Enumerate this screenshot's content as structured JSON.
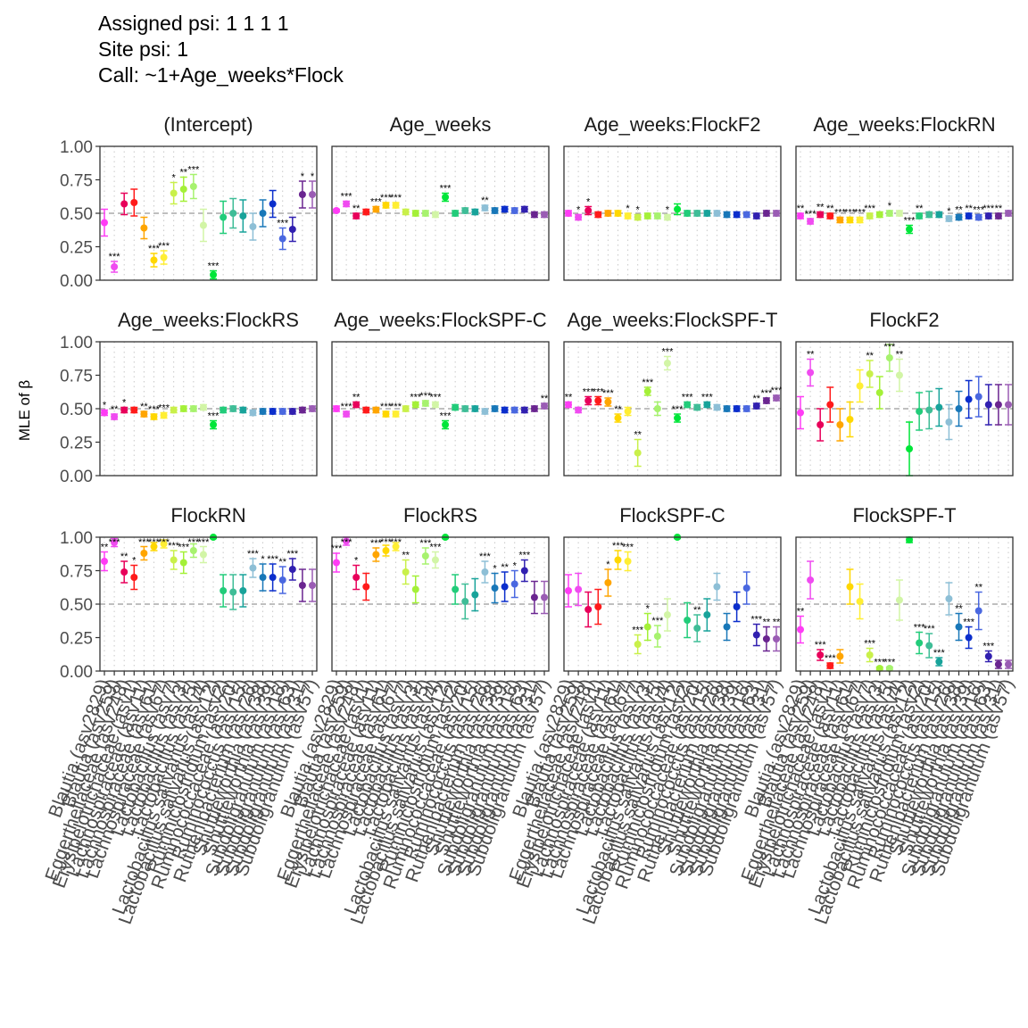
{
  "header": {
    "line1": "Assigned psi: 1 1 1 1",
    "line2": "Site psi: 1",
    "line3": "Call: ~1+Age_weeks*Flock"
  },
  "chart_data": {
    "type": "scatter",
    "ylabel": "MLE of β",
    "ylim": [
      0,
      1
    ],
    "yticks": [
      "0.00",
      "0.25",
      "0.50",
      "0.75",
      "1.00"
    ],
    "reference_line": 0.5,
    "categories": [
      "Blautia (asv2829)",
      "Blautia (asv259)",
      "Eggerthellaceae (asv248)",
      "Erysipelotrichaceae (asv1)",
      "Lachnospiraceae (asv11)",
      "Lachnospiraceae (asv61)",
      "Lachnospiraceae (asv67)",
      "Lactobacillus (asv7)",
      "Lactobacillus (asv3)",
      "Lactobacillus (asv5)",
      "Lactobacillus salivarius (asv4)",
      "Lactobacillus salivarius (asv12)",
      "Ruminiclostridium (asv2)",
      "Ruminococcaceae (asv20)",
      "Ruminococcus (asv15)",
      "Ruthenibacterium (asv26)",
      "Shuttleworthia (asv38)",
      "Shuttleworthia (asv39)",
      "Subdoligranulum (asv16)",
      "Subdoligranulum (asv63)",
      "Subdoligranulum (asv31)",
      "Subdoligranulum (asv57)"
    ],
    "colors": [
      "#ff3cf5",
      "#f04bf0",
      "#e8005a",
      "#ff1a1a",
      "#ffa500",
      "#ffd700",
      "#ffee33",
      "#c9f04a",
      "#a4f038",
      "#a7f26e",
      "#d2f5a6",
      "#00e639",
      "#22cc7a",
      "#3fbd97",
      "#18a39a",
      "#8dbfd6",
      "#1877b8",
      "#0b2ecc",
      "#4a68e0",
      "#3120b0",
      "#6a2590",
      "#9a5cb4"
    ],
    "panels": [
      {
        "name": "(Intercept)",
        "mle": [
          0.43,
          0.1,
          0.57,
          0.58,
          0.39,
          0.15,
          0.17,
          0.65,
          0.68,
          0.7,
          0.41,
          0.04,
          0.47,
          0.5,
          0.48,
          0.4,
          0.5,
          0.57,
          0.31,
          0.38,
          0.64,
          0.64
        ],
        "err": [
          0.1,
          0.04,
          0.08,
          0.1,
          0.08,
          0.05,
          0.05,
          0.08,
          0.09,
          0.09,
          0.12,
          0.03,
          0.12,
          0.11,
          0.12,
          0.1,
          0.1,
          0.1,
          0.08,
          0.09,
          0.1,
          0.1
        ],
        "stars": [
          "",
          "***",
          "",
          "",
          "",
          "***",
          "***",
          "*",
          "**",
          "***",
          "",
          "***",
          "",
          "",
          "",
          "",
          "",
          "",
          "***",
          "",
          "*",
          "*"
        ]
      },
      {
        "name": "Age_weeks",
        "mle": [
          0.52,
          0.57,
          0.48,
          0.51,
          0.53,
          0.56,
          0.56,
          0.51,
          0.5,
          0.5,
          0.49,
          0.62,
          0.5,
          0.52,
          0.51,
          0.54,
          0.52,
          0.53,
          0.52,
          0.53,
          0.49,
          0.49
        ],
        "err": [
          0.01,
          0.02,
          0.02,
          0.02,
          0.02,
          0.02,
          0.02,
          0.02,
          0.02,
          0.02,
          0.02,
          0.03,
          0.02,
          0.02,
          0.02,
          0.02,
          0.02,
          0.02,
          0.02,
          0.02,
          0.02,
          0.02
        ],
        "stars": [
          "",
          "***",
          "**",
          "",
          "***",
          "***",
          "***",
          "",
          "",
          "",
          "",
          "***",
          "",
          "",
          "",
          "**",
          "",
          "",
          "",
          "",
          "",
          ""
        ]
      },
      {
        "name": "Age_weeks:FlockF2",
        "mle": [
          0.5,
          0.47,
          0.52,
          0.49,
          0.5,
          0.5,
          0.48,
          0.47,
          0.48,
          0.48,
          0.47,
          0.53,
          0.5,
          0.5,
          0.5,
          0.5,
          0.49,
          0.49,
          0.49,
          0.48,
          0.5,
          0.5
        ],
        "err": [
          0.02,
          0.02,
          0.03,
          0.02,
          0.02,
          0.02,
          0.02,
          0.02,
          0.02,
          0.02,
          0.02,
          0.04,
          0.02,
          0.02,
          0.02,
          0.02,
          0.02,
          0.02,
          0.02,
          0.02,
          0.02,
          0.02
        ],
        "stars": [
          "",
          "*",
          "*",
          "",
          "",
          "",
          "*",
          "*",
          "",
          "",
          "*",
          "",
          "",
          "",
          "",
          "",
          "",
          "",
          "",
          "",
          "",
          ""
        ]
      },
      {
        "name": "Age_weeks:FlockRN",
        "mle": [
          0.48,
          0.44,
          0.49,
          0.48,
          0.45,
          0.45,
          0.45,
          0.48,
          0.49,
          0.5,
          0.5,
          0.38,
          0.48,
          0.49,
          0.49,
          0.46,
          0.47,
          0.48,
          0.47,
          0.48,
          0.48,
          0.5
        ],
        "err": [
          0.02,
          0.02,
          0.02,
          0.02,
          0.02,
          0.02,
          0.02,
          0.02,
          0.02,
          0.02,
          0.02,
          0.03,
          0.02,
          0.02,
          0.02,
          0.02,
          0.02,
          0.02,
          0.02,
          0.02,
          0.02,
          0.02
        ],
        "stars": [
          "**",
          "***",
          "**",
          "**",
          "***",
          "***",
          "***",
          "***",
          "",
          "*",
          "",
          "***",
          "**",
          "",
          "",
          "*",
          "**",
          "**",
          "***",
          "***",
          "**",
          ""
        ]
      },
      {
        "name": "Age_weeks:FlockRS",
        "mle": [
          0.47,
          0.44,
          0.49,
          0.49,
          0.46,
          0.44,
          0.45,
          0.49,
          0.5,
          0.5,
          0.51,
          0.38,
          0.49,
          0.5,
          0.49,
          0.47,
          0.48,
          0.48,
          0.48,
          0.48,
          0.49,
          0.5
        ],
        "err": [
          0.02,
          0.02,
          0.02,
          0.02,
          0.02,
          0.02,
          0.02,
          0.02,
          0.02,
          0.02,
          0.02,
          0.03,
          0.02,
          0.02,
          0.02,
          0.02,
          0.02,
          0.02,
          0.02,
          0.02,
          0.02,
          0.02
        ],
        "stars": [
          "*",
          "**",
          "*",
          "",
          "**",
          "***",
          "***",
          "",
          "",
          "",
          "",
          "***",
          "",
          "",
          "",
          "",
          "",
          "",
          "",
          "",
          "",
          ""
        ]
      },
      {
        "name": "Age_weeks:FlockSPF-C",
        "mle": [
          0.5,
          0.46,
          0.53,
          0.49,
          0.49,
          0.46,
          0.46,
          0.5,
          0.53,
          0.54,
          0.53,
          0.38,
          0.51,
          0.5,
          0.5,
          0.48,
          0.5,
          0.49,
          0.49,
          0.49,
          0.5,
          0.52
        ],
        "err": [
          0.02,
          0.02,
          0.02,
          0.02,
          0.02,
          0.02,
          0.02,
          0.02,
          0.02,
          0.02,
          0.02,
          0.03,
          0.02,
          0.02,
          0.02,
          0.02,
          0.02,
          0.02,
          0.02,
          0.02,
          0.02,
          0.02
        ],
        "stars": [
          "",
          "***",
          "**",
          "",
          "",
          "***",
          "***",
          "",
          "***",
          "***",
          "***",
          "***",
          "",
          "",
          "",
          "",
          "",
          "",
          "",
          "",
          "",
          "**"
        ]
      },
      {
        "name": "Age_weeks:FlockSPF-T",
        "mle": [
          0.53,
          0.49,
          0.56,
          0.56,
          0.55,
          0.43,
          0.48,
          0.17,
          0.63,
          0.5,
          0.84,
          0.43,
          0.53,
          0.51,
          0.53,
          0.51,
          0.5,
          0.5,
          0.5,
          0.52,
          0.56,
          0.58
        ],
        "err": [
          0.02,
          0.02,
          0.03,
          0.03,
          0.03,
          0.03,
          0.03,
          0.1,
          0.03,
          0.05,
          0.05,
          0.03,
          0.02,
          0.02,
          0.02,
          0.02,
          0.02,
          0.02,
          0.02,
          0.02,
          0.02,
          0.02
        ],
        "stars": [
          "**",
          "",
          "***",
          "***",
          "***",
          "**",
          "",
          "**",
          "***",
          "",
          "***",
          "***",
          "***",
          "",
          "***",
          "",
          "",
          "",
          "",
          "**",
          "***",
          "***"
        ]
      },
      {
        "name": "FlockF2",
        "mle": [
          0.47,
          0.77,
          0.38,
          0.53,
          0.38,
          0.42,
          0.67,
          0.76,
          0.62,
          0.88,
          0.75,
          0.2,
          0.48,
          0.49,
          0.51,
          0.4,
          0.5,
          0.57,
          0.59,
          0.53,
          0.53,
          0.53
        ],
        "err": [
          0.12,
          0.1,
          0.12,
          0.13,
          0.12,
          0.13,
          0.12,
          0.1,
          0.12,
          0.1,
          0.12,
          0.2,
          0.14,
          0.14,
          0.14,
          0.13,
          0.13,
          0.14,
          0.15,
          0.15,
          0.15,
          0.15
        ],
        "stars": [
          "",
          "**",
          "",
          "",
          "",
          "",
          "",
          "**",
          "",
          "***",
          "**",
          "",
          "",
          "",
          "",
          "",
          "",
          "",
          "",
          "",
          "",
          ""
        ]
      },
      {
        "name": "FlockRN",
        "mle": [
          0.82,
          0.96,
          0.74,
          0.7,
          0.88,
          0.93,
          0.95,
          0.83,
          0.81,
          0.9,
          0.87,
          1.0,
          0.6,
          0.59,
          0.6,
          0.77,
          0.7,
          0.7,
          0.68,
          0.76,
          0.64,
          0.64
        ],
        "err": [
          0.07,
          0.03,
          0.08,
          0.09,
          0.05,
          0.03,
          0.03,
          0.07,
          0.08,
          0.05,
          0.06,
          0.01,
          0.12,
          0.13,
          0.12,
          0.07,
          0.1,
          0.1,
          0.1,
          0.08,
          0.12,
          0.12
        ],
        "stars": [
          "**",
          "***",
          "**",
          "*",
          "***",
          "***",
          "***",
          "***",
          "***",
          "***",
          "***",
          "",
          "",
          "",
          "",
          "***",
          "*",
          "***",
          "**",
          "***",
          "",
          ""
        ]
      },
      {
        "name": "FlockRS",
        "mle": [
          0.81,
          0.97,
          0.7,
          0.63,
          0.87,
          0.9,
          0.93,
          0.74,
          0.61,
          0.86,
          0.83,
          1.0,
          0.61,
          0.52,
          0.57,
          0.74,
          0.62,
          0.63,
          0.65,
          0.75,
          0.55,
          0.55
        ],
        "err": [
          0.07,
          0.03,
          0.09,
          0.1,
          0.05,
          0.04,
          0.03,
          0.09,
          0.1,
          0.06,
          0.06,
          0.01,
          0.11,
          0.13,
          0.12,
          0.08,
          0.11,
          0.11,
          0.1,
          0.08,
          0.12,
          0.12
        ],
        "stars": [
          "***",
          "***",
          "*",
          "",
          "***",
          "***",
          "***",
          "**",
          "",
          "***",
          "***",
          "",
          "",
          "",
          "",
          "***",
          "*",
          "**",
          "*",
          "***",
          "",
          ""
        ]
      },
      {
        "name": "FlockSPF-C",
        "mle": [
          0.6,
          0.61,
          0.46,
          0.48,
          0.66,
          0.83,
          0.82,
          0.2,
          0.33,
          0.26,
          0.42,
          1.0,
          0.38,
          0.32,
          0.42,
          0.63,
          0.33,
          0.48,
          0.62,
          0.27,
          0.24,
          0.24
        ],
        "err": [
          0.12,
          0.12,
          0.13,
          0.13,
          0.1,
          0.07,
          0.07,
          0.07,
          0.1,
          0.08,
          0.12,
          0.01,
          0.13,
          0.1,
          0.12,
          0.1,
          0.1,
          0.11,
          0.12,
          0.08,
          0.09,
          0.09
        ],
        "stars": [
          "",
          "",
          "",
          "",
          "*",
          "***",
          "***",
          "***",
          "*",
          "***",
          "",
          "",
          "",
          "**",
          "",
          "",
          "",
          "",
          "",
          "***",
          "**",
          "**"
        ]
      },
      {
        "name": "FlockSPF-T",
        "mle": [
          0.31,
          0.68,
          0.12,
          0.04,
          0.11,
          0.63,
          0.52,
          0.12,
          0.02,
          0.02,
          0.53,
          0.98,
          0.21,
          0.19,
          0.07,
          0.54,
          0.33,
          0.25,
          0.45,
          0.11,
          0.05,
          0.05
        ],
        "err": [
          0.1,
          0.14,
          0.04,
          0.02,
          0.05,
          0.13,
          0.13,
          0.05,
          0.01,
          0.01,
          0.15,
          0.02,
          0.08,
          0.09,
          0.03,
          0.12,
          0.1,
          0.08,
          0.14,
          0.04,
          0.03,
          0.03
        ],
        "stars": [
          "**",
          "",
          "***",
          "***",
          "",
          "",
          "",
          "***",
          "***",
          "***",
          "",
          "",
          "***",
          "***",
          "***",
          "",
          "**",
          "***",
          "**",
          "***",
          "",
          ""
        ]
      }
    ]
  }
}
